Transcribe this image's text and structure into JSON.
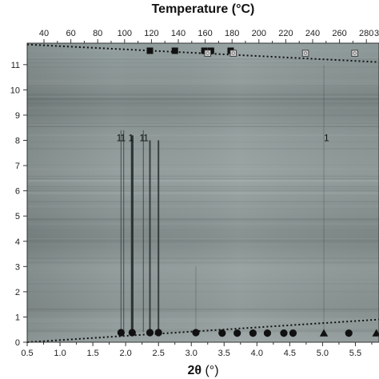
{
  "chart_data": {
    "type": "heatmap",
    "title": "",
    "x_bottom": {
      "label": "2θ (°)",
      "label_main": "2θ",
      "label_unit": " (°)",
      "range": [
        0.5,
        5.86
      ],
      "ticks": [
        0.5,
        1.0,
        1.5,
        2.0,
        2.5,
        3.0,
        3.5,
        4.0,
        4.5,
        5.0,
        5.5
      ]
    },
    "x_top": {
      "label": "Temperature (°C)",
      "ticks": [
        40,
        60,
        80,
        100,
        120,
        140,
        160,
        180,
        200,
        220,
        240,
        260,
        280
      ],
      "partial_tick_label": "3"
    },
    "y_left": {
      "label": "",
      "range": [
        0,
        11.85
      ],
      "ticks": [
        0,
        1,
        2,
        3,
        4,
        5,
        6,
        7,
        8,
        9,
        10,
        11
      ]
    },
    "grid": false,
    "legend": "none",
    "colors": {
      "background_map": "#8f9b9a",
      "peak_line": "#2a2f2f",
      "dashed_line": "#111111",
      "marker": "#111111",
      "open_marker_fill": "#d8d8d8"
    },
    "vertical_peaks": [
      {
        "x": 1.93,
        "y_start": 0.4,
        "y_end": 8.4,
        "strength": "weak"
      },
      {
        "x": 1.97,
        "y_start": 0.4,
        "y_end": 8.4,
        "strength": "weak"
      },
      {
        "x": 2.1,
        "y_start": 0.4,
        "y_end": 8.2,
        "strength": "strong"
      },
      {
        "x": 2.27,
        "y_start": 0.4,
        "y_end": 8.4,
        "strength": "weak"
      },
      {
        "x": 2.37,
        "y_start": 0.4,
        "y_end": 8.0,
        "strength": "medium"
      },
      {
        "x": 2.5,
        "y_start": 0.4,
        "y_end": 8.0,
        "strength": "medium"
      },
      {
        "x": 3.07,
        "y_start": 0.4,
        "y_end": 3.0,
        "strength": "faint"
      },
      {
        "x": 5.02,
        "y_start": 0.4,
        "y_end": 11.0,
        "strength": "faint"
      },
      {
        "x": 5.86,
        "y_start": 0.4,
        "y_end": 11.0,
        "strength": "faint"
      }
    ],
    "dashed_lines": [
      {
        "x": [
          0.5,
          5.86
        ],
        "y": [
          11.8,
          11.1
        ]
      },
      {
        "x": [
          0.5,
          5.86
        ],
        "y": [
          0.0,
          0.9
        ]
      }
    ],
    "markers_bottom": [
      {
        "x": 1.93,
        "y": 0.38,
        "shape": "circle"
      },
      {
        "x": 2.1,
        "y": 0.38,
        "shape": "circle"
      },
      {
        "x": 2.37,
        "y": 0.38,
        "shape": "circle"
      },
      {
        "x": 2.5,
        "y": 0.38,
        "shape": "circle"
      },
      {
        "x": 3.07,
        "y": 0.38,
        "shape": "circle"
      },
      {
        "x": 3.47,
        "y": 0.36,
        "shape": "circle"
      },
      {
        "x": 3.7,
        "y": 0.36,
        "shape": "circle"
      },
      {
        "x": 3.94,
        "y": 0.36,
        "shape": "circle"
      },
      {
        "x": 4.16,
        "y": 0.36,
        "shape": "circle"
      },
      {
        "x": 4.41,
        "y": 0.36,
        "shape": "circle"
      },
      {
        "x": 4.55,
        "y": 0.36,
        "shape": "circle"
      },
      {
        "x": 5.02,
        "y": 0.36,
        "shape": "triangle"
      },
      {
        "x": 5.4,
        "y": 0.36,
        "shape": "circle"
      },
      {
        "x": 5.82,
        "y": 0.36,
        "shape": "triangle"
      }
    ],
    "markers_top": [
      {
        "x": 2.37,
        "y": 11.55,
        "shape": "square"
      },
      {
        "x": 2.75,
        "y": 11.55,
        "shape": "square"
      },
      {
        "x": 3.2,
        "y": 11.55,
        "shape": "square"
      },
      {
        "x": 3.3,
        "y": 11.55,
        "shape": "square"
      },
      {
        "x": 3.6,
        "y": 11.55,
        "shape": "square"
      },
      {
        "x": 3.25,
        "y": 11.45,
        "shape": "open-square"
      },
      {
        "x": 3.64,
        "y": 11.45,
        "shape": "open-square"
      },
      {
        "x": 4.74,
        "y": 11.45,
        "shape": "open-square"
      },
      {
        "x": 5.49,
        "y": 11.45,
        "shape": "open-square"
      }
    ],
    "annotations": [
      {
        "text": "1",
        "x": 1.9,
        "y": 8.1
      },
      {
        "text": "1",
        "x": 1.96,
        "y": 8.1
      },
      {
        "text": "1",
        "x": 2.08,
        "y": 8.1
      },
      {
        "text": "1",
        "x": 2.25,
        "y": 8.1
      },
      {
        "text": "1",
        "x": 2.31,
        "y": 8.1
      },
      {
        "text": "1",
        "x": 5.06,
        "y": 8.1
      }
    ]
  }
}
